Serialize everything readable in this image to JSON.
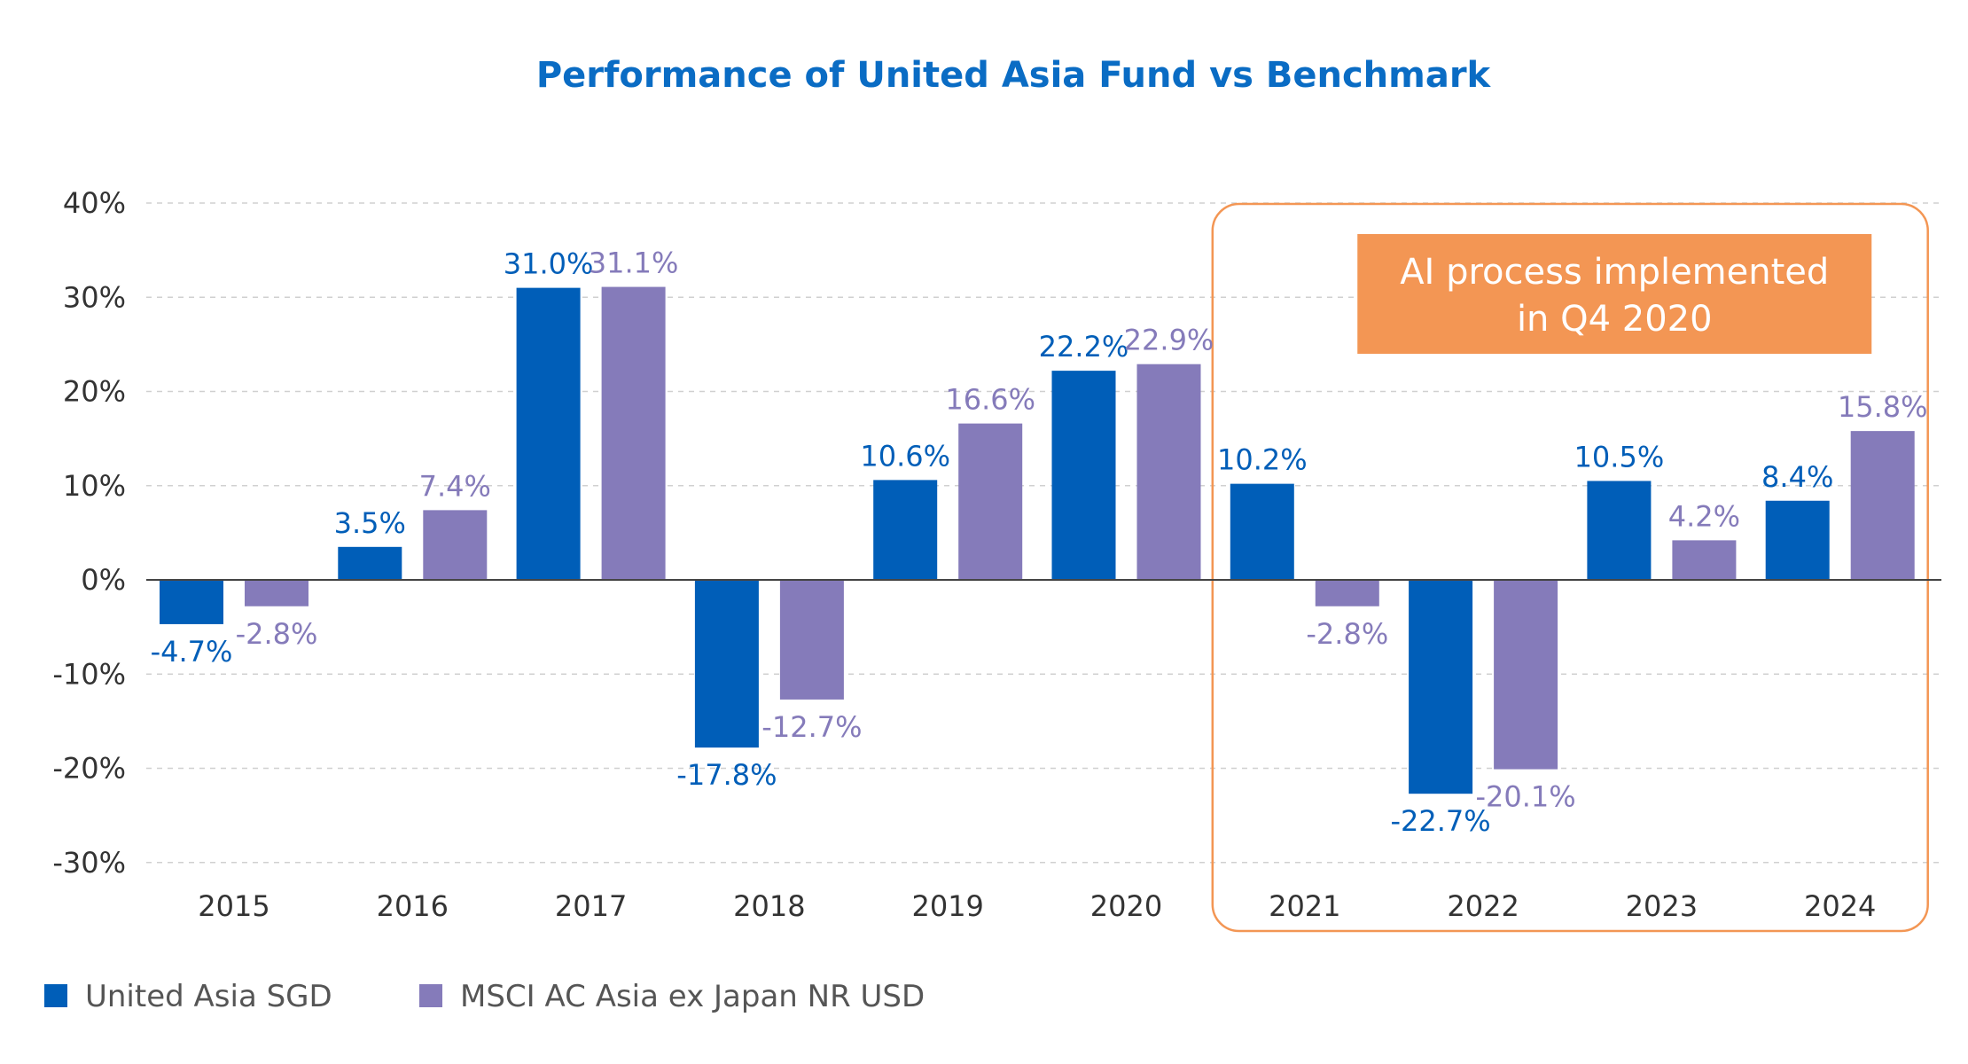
{
  "chart_data": {
    "type": "bar",
    "title": "Performance of United Asia Fund vs Benchmark",
    "categories": [
      "2015",
      "2016",
      "2017",
      "2018",
      "2019",
      "2020",
      "2021",
      "2022",
      "2023",
      "2024"
    ],
    "series": [
      {
        "name": "United Asia SGD",
        "color": "#005eb8",
        "values": [
          -4.7,
          3.5,
          31.0,
          -17.8,
          10.6,
          22.2,
          10.2,
          -22.7,
          10.5,
          8.4
        ],
        "labels": [
          "-4.7%",
          "3.5%",
          "31.0%",
          "-17.8%",
          "10.6%",
          "22.2%",
          "10.2%",
          "-22.7%",
          "10.5%",
          "8.4%"
        ]
      },
      {
        "name": "MSCI AC Asia ex Japan NR USD",
        "color": "#857bba",
        "values": [
          -2.8,
          7.4,
          31.1,
          -12.7,
          16.6,
          22.9,
          -2.8,
          -20.1,
          4.2,
          15.8
        ],
        "labels": [
          "-2.8%",
          "7.4%",
          "31.1%",
          "-12.7%",
          "16.6%",
          "22.9%",
          "-2.8%",
          "-20.1%",
          "4.2%",
          "15.8%"
        ]
      }
    ],
    "yticks": [
      "40%",
      "30%",
      "20%",
      "10%",
      "0%",
      "-10%",
      "-20%",
      "-30%"
    ],
    "ytick_values": [
      40,
      30,
      20,
      10,
      0,
      -10,
      -20,
      -30
    ],
    "ylim": [
      -30,
      40
    ],
    "grid": true,
    "legend_position": "bottom-left",
    "annotation": {
      "lines": [
        "AI  process implemented",
        "in Q4 2020"
      ],
      "box_color": "#f39654",
      "highlight_from": "2021",
      "highlight_to": "2024"
    }
  }
}
